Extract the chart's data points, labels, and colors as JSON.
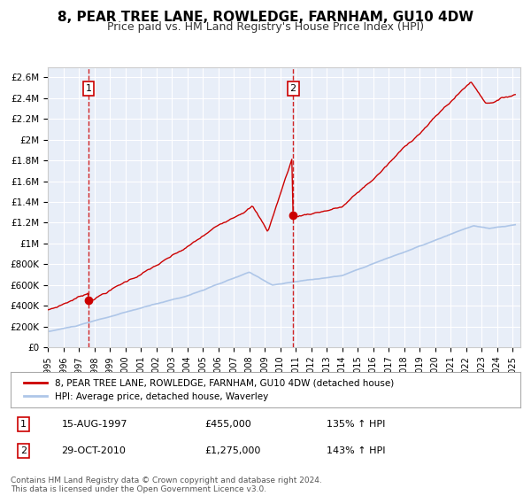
{
  "title": "8, PEAR TREE LANE, ROWLEDGE, FARNHAM, GU10 4DW",
  "subtitle": "Price paid vs. HM Land Registry's House Price Index (HPI)",
  "title_fontsize": 11,
  "subtitle_fontsize": 9,
  "xlim": [
    1995.0,
    2025.5
  ],
  "ylim": [
    0,
    2700000
  ],
  "yticks": [
    0,
    200000,
    400000,
    600000,
    800000,
    1000000,
    1200000,
    1400000,
    1600000,
    1800000,
    2000000,
    2200000,
    2400000,
    2600000
  ],
  "ytick_labels": [
    "£0",
    "£200K",
    "£400K",
    "£600K",
    "£800K",
    "£1M",
    "£1.2M",
    "£1.4M",
    "£1.6M",
    "£1.8M",
    "£2M",
    "£2.2M",
    "£2.4M",
    "£2.6M"
  ],
  "xticks": [
    1995,
    1996,
    1997,
    1998,
    1999,
    2000,
    2001,
    2002,
    2003,
    2004,
    2005,
    2006,
    2007,
    2008,
    2009,
    2010,
    2011,
    2012,
    2013,
    2014,
    2015,
    2016,
    2017,
    2018,
    2019,
    2020,
    2021,
    2022,
    2023,
    2024,
    2025
  ],
  "hpi_color": "#aec6e8",
  "price_color": "#cc0000",
  "marker_color": "#cc0000",
  "vline_color": "#cc0000",
  "plot_bg_color": "#e8eef8",
  "legend_label_red": "8, PEAR TREE LANE, ROWLEDGE, FARNHAM, GU10 4DW (detached house)",
  "legend_label_blue": "HPI: Average price, detached house, Waverley",
  "sale1_x": 1997.625,
  "sale1_y": 455000,
  "sale2_x": 2010.831,
  "sale2_y": 1275000,
  "sale1_date": "15-AUG-1997",
  "sale1_price": "£455,000",
  "sale1_hpi": "135% ↑ HPI",
  "sale2_date": "29-OCT-2010",
  "sale2_price": "£1,275,000",
  "sale2_hpi": "143% ↑ HPI",
  "footer1": "Contains HM Land Registry data © Crown copyright and database right 2024.",
  "footer2": "This data is licensed under the Open Government Licence v3.0."
}
